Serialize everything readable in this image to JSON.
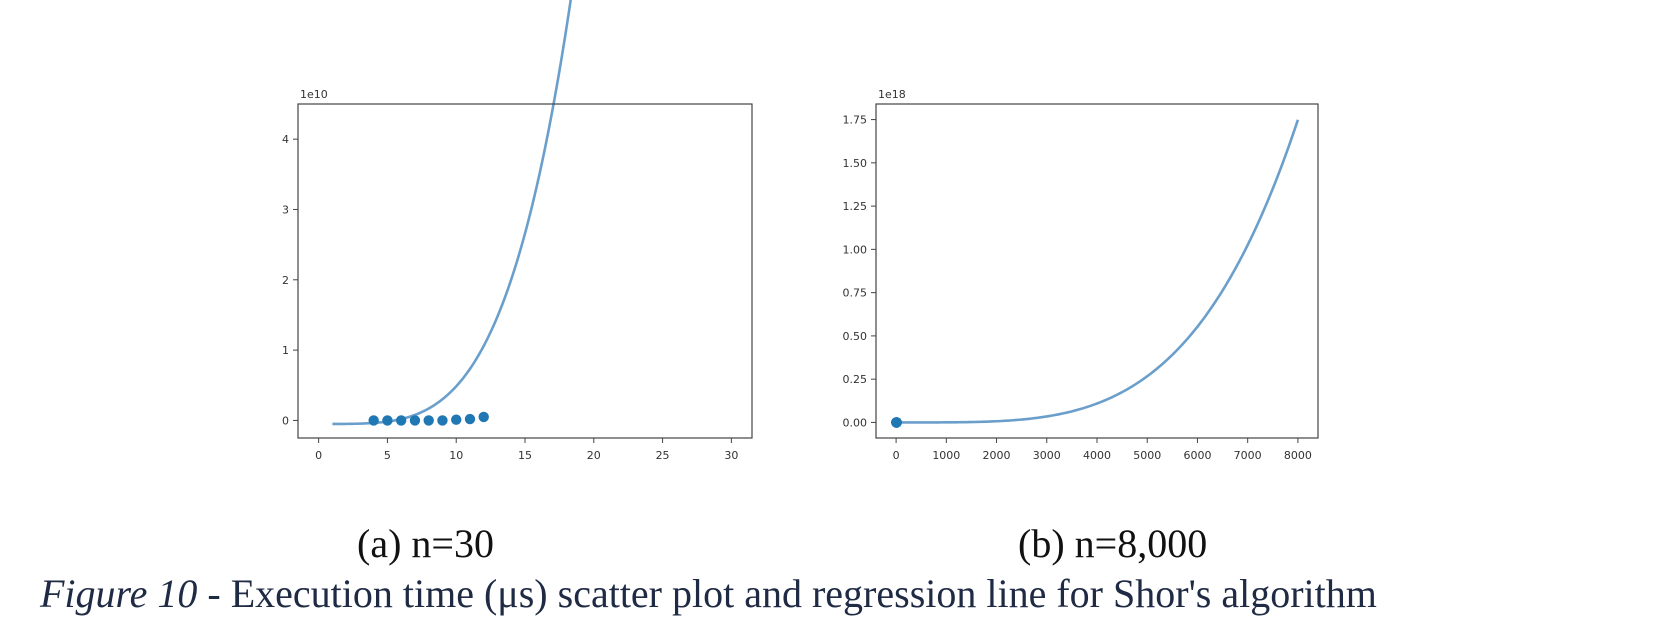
{
  "chart_data": [
    {
      "type": "scatter",
      "title": "",
      "xlabel": "",
      "ylabel": "",
      "offset_text": "1e10",
      "xlim": [
        -1.5,
        31.5
      ],
      "ylim": [
        -0.25,
        4.5
      ],
      "x_ticks": [
        0,
        5,
        10,
        15,
        20,
        25,
        30
      ],
      "y_ticks": [
        0,
        1,
        2,
        3,
        4
      ],
      "grid": false,
      "color": "#1f77b4",
      "line_color": "#6b9fcb",
      "scatter": {
        "x": [
          4,
          5,
          6,
          7,
          8,
          9,
          10,
          11,
          12
        ],
        "y": [
          0.0,
          0.0,
          0.0,
          0.0,
          0.0,
          0.0,
          0.01,
          0.02,
          0.05
        ]
      },
      "regression": {
        "x_range": [
          1,
          30
        ],
        "coef": [
          -0.05,
          0.0,
          0.0,
          0.0,
          5.35e-05
        ]
      }
    },
    {
      "type": "scatter",
      "title": "",
      "xlabel": "",
      "ylabel": "",
      "offset_text": "1e18",
      "xlim": [
        -400,
        8400
      ],
      "ylim": [
        -0.09,
        1.84
      ],
      "x_ticks": [
        0,
        1000,
        2000,
        3000,
        4000,
        5000,
        6000,
        7000,
        8000
      ],
      "y_ticks": [
        0.0,
        0.25,
        0.5,
        0.75,
        1.0,
        1.25,
        1.5,
        1.75
      ],
      "y_tick_labels": [
        "0.00",
        "0.25",
        "0.50",
        "0.75",
        "1.00",
        "1.25",
        "1.50",
        "1.75"
      ],
      "grid": false,
      "color": "#1f77b4",
      "line_color": "#6b9fcb",
      "scatter": {
        "x": [
          4,
          5,
          6,
          7,
          8,
          9,
          10,
          11,
          12
        ],
        "y": [
          0.0,
          0.0,
          0.0,
          0.0,
          0.0,
          0.0,
          0.0,
          0.0,
          0.0
        ]
      },
      "regression": {
        "x_range": [
          0,
          8000
        ],
        "coef": [
          -5e-11,
          0.0,
          0.0,
          0.0,
          4.27e-16
        ]
      }
    }
  ],
  "captions": {
    "subcaption_a": "(a) n=30",
    "subcaption_b": "(b) n=8,000",
    "figure_label": "Figure 10",
    "figure_text": " - Execution time (μs) scatter plot and regression line for Shor's algorithm"
  }
}
